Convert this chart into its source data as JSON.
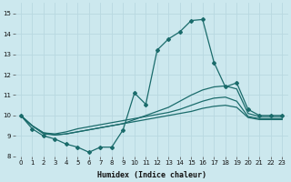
{
  "xlabel": "Humidex (Indice chaleur)",
  "xlim": [
    -0.5,
    23.5
  ],
  "ylim": [
    8,
    15.5
  ],
  "xticks": [
    0,
    1,
    2,
    3,
    4,
    5,
    6,
    7,
    8,
    9,
    10,
    11,
    12,
    13,
    14,
    15,
    16,
    17,
    18,
    19,
    20,
    21,
    22,
    23
  ],
  "yticks": [
    8,
    9,
    10,
    11,
    12,
    13,
    14,
    15
  ],
  "bg_color": "#cce8ee",
  "line_color": "#1a6b6b",
  "grid_color": "#b8d8e0",
  "lines": [
    {
      "x": [
        0,
        1,
        2,
        3,
        4,
        5,
        6,
        7,
        8,
        9,
        10,
        11,
        12,
        13,
        14,
        15,
        16,
        17,
        18,
        19,
        20,
        21,
        22,
        23
      ],
      "y": [
        10.0,
        9.35,
        9.0,
        8.85,
        8.6,
        8.45,
        8.2,
        8.45,
        8.45,
        9.3,
        11.1,
        10.55,
        13.2,
        13.75,
        14.1,
        14.65,
        14.7,
        12.6,
        11.4,
        11.6,
        10.3,
        10.0,
        10.0,
        10.0
      ],
      "marker": "D",
      "markersize": 2.0,
      "linewidth": 0.9
    },
    {
      "x": [
        0,
        1,
        2,
        3,
        4,
        5,
        6,
        7,
        8,
        9,
        10,
        11,
        12,
        13,
        14,
        15,
        16,
        17,
        18,
        19,
        20,
        21,
        22,
        23
      ],
      "y": [
        10.0,
        9.5,
        9.15,
        9.05,
        9.1,
        9.2,
        9.3,
        9.4,
        9.5,
        9.6,
        9.8,
        10.0,
        10.2,
        10.4,
        10.7,
        11.0,
        11.25,
        11.4,
        11.45,
        11.3,
        10.1,
        9.95,
        9.95,
        9.95
      ],
      "marker": null,
      "markersize": 0,
      "linewidth": 0.9
    },
    {
      "x": [
        0,
        1,
        2,
        3,
        4,
        5,
        6,
        7,
        8,
        9,
        10,
        11,
        12,
        13,
        14,
        15,
        16,
        17,
        18,
        19,
        20,
        21,
        22,
        23
      ],
      "y": [
        10.0,
        9.5,
        9.15,
        9.1,
        9.2,
        9.35,
        9.45,
        9.55,
        9.65,
        9.75,
        9.85,
        9.95,
        10.05,
        10.15,
        10.3,
        10.5,
        10.7,
        10.85,
        10.9,
        10.7,
        9.95,
        9.85,
        9.85,
        9.85
      ],
      "marker": null,
      "markersize": 0,
      "linewidth": 0.9
    },
    {
      "x": [
        0,
        1,
        2,
        3,
        4,
        5,
        6,
        7,
        8,
        9,
        10,
        11,
        12,
        13,
        14,
        15,
        16,
        17,
        18,
        19,
        20,
        21,
        22,
        23
      ],
      "y": [
        10.0,
        9.5,
        9.1,
        9.05,
        9.1,
        9.2,
        9.3,
        9.4,
        9.5,
        9.6,
        9.7,
        9.8,
        9.9,
        10.0,
        10.1,
        10.2,
        10.35,
        10.45,
        10.5,
        10.4,
        9.9,
        9.8,
        9.8,
        9.8
      ],
      "marker": null,
      "markersize": 0,
      "linewidth": 0.9
    }
  ]
}
